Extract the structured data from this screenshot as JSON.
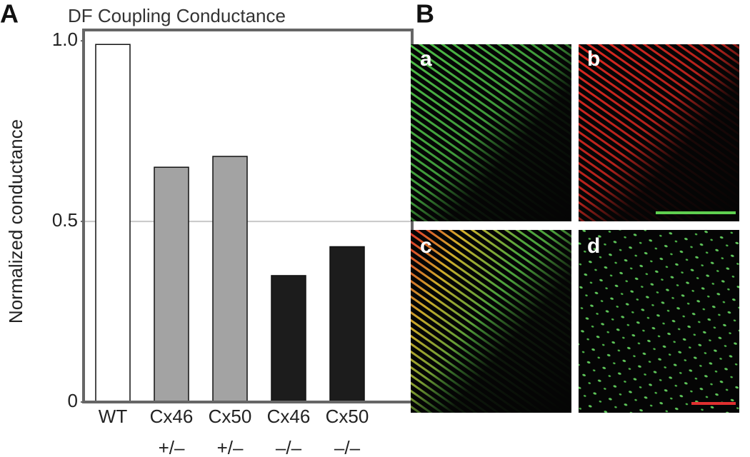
{
  "chart_data": {
    "type": "bar",
    "title": "DF Coupling Conductance",
    "ylabel": "Normalized conductance",
    "categories": [
      [
        "WT"
      ],
      [
        "Cx46",
        "+/–"
      ],
      [
        "Cx50",
        "+/–"
      ],
      [
        "Cx46",
        "–/–"
      ],
      [
        "Cx50",
        "–/–"
      ]
    ],
    "values": [
      0.99,
      0.65,
      0.68,
      0.35,
      0.43
    ],
    "colors": [
      "#ffffff",
      "#a3a3a3",
      "#a3a3a3",
      "#1c1c1c",
      "#1c1c1c"
    ],
    "ylim": [
      0,
      1.03
    ],
    "yticks": [
      0,
      0.5,
      {
        "value": 1,
        "label": "1.0"
      }
    ],
    "gridlines": [
      0.5
    ]
  },
  "panel_labels": [
    "A",
    "B"
  ],
  "image_labels": [
    "a",
    "b",
    "c",
    "d"
  ]
}
